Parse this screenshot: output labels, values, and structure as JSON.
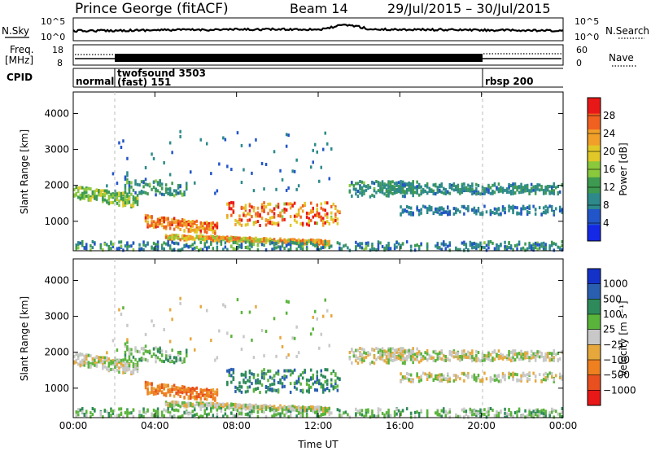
{
  "header": {
    "station": "Prince George (fitACF)",
    "beam": "Beam 14",
    "dates": "29/Jul/2015 – 30/Jul/2015"
  },
  "strips": {
    "nsky_label": "N.Sky",
    "nsky_ticks": [
      "10^5",
      "10^0"
    ],
    "nsearch_label": "N.Search",
    "nsearch_ticks": [
      "10^5",
      "10^0"
    ],
    "freq_label_1": "Freq.",
    "freq_label_2": "[MHz]",
    "freq_ticks": [
      "18",
      "8"
    ],
    "nave_label": "Nave",
    "nave_ticks": [
      "60",
      "0"
    ],
    "cpid_label": "CPID",
    "cpid_segments": [
      {
        "name": "normal",
        "start_h": 0,
        "end_h": 2
      },
      {
        "name": "twofsound 3503",
        "sub": "(fast) 151",
        "start_h": 2,
        "end_h": 20
      },
      {
        "name": "rbsp 200",
        "start_h": 20,
        "end_h": 24
      }
    ]
  },
  "chart_data": [
    {
      "type": "heatmap",
      "xlabel": "Time UT",
      "ylabel": "Slant Range [km]",
      "x_ticks": [
        "00:00",
        "04:00",
        "08:00",
        "12:00",
        "16:00",
        "20:00",
        "00:00"
      ],
      "xlim_hours": [
        0,
        24
      ],
      "y_ticks": [
        1000,
        2000,
        3000,
        4000
      ],
      "ylim": [
        180,
        4600
      ],
      "colorbar": {
        "label": "Power [dB]",
        "ticks": [
          "4",
          "8",
          "12",
          "16",
          "20",
          "24",
          "28"
        ],
        "range": [
          0,
          30
        ]
      }
    },
    {
      "type": "heatmap",
      "xlabel": "Time UT",
      "ylabel": "Slant Range [km]",
      "x_ticks": [
        "00:00",
        "04:00",
        "08:00",
        "12:00",
        "16:00",
        "20:00",
        "00:00"
      ],
      "xlim_hours": [
        0,
        24
      ],
      "y_ticks": [
        1000,
        2000,
        3000,
        4000
      ],
      "ylim": [
        180,
        4600
      ],
      "colorbar": {
        "label": "Velocity [m s⁻¹]",
        "ticks": [
          "1000",
          "500",
          "100",
          "25",
          "−25",
          "−100",
          "−500",
          "−1000"
        ]
      }
    }
  ],
  "bottom_xlabel": "Time UT"
}
